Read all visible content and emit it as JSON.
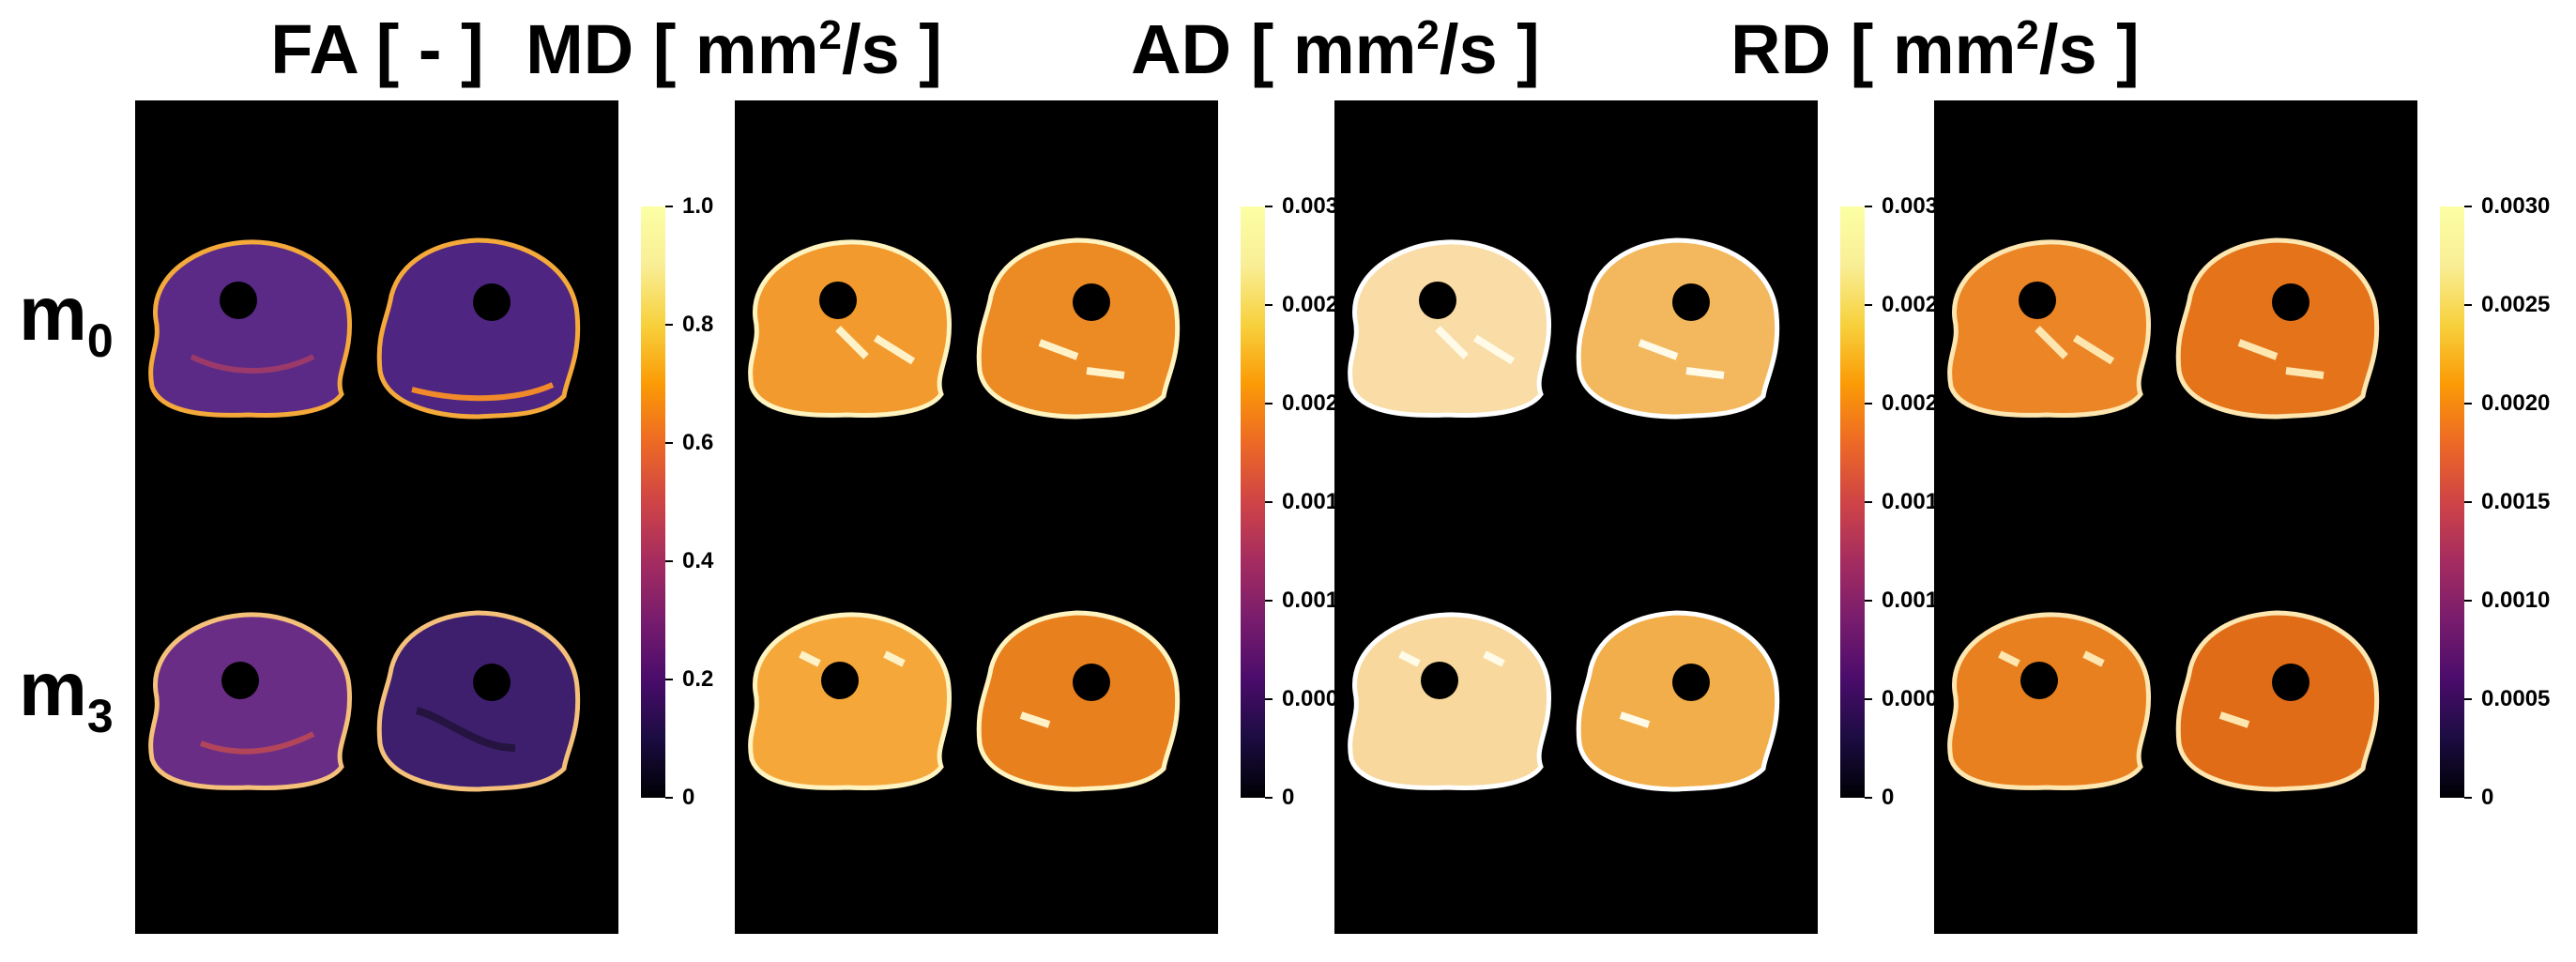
{
  "titles": {
    "fa": {
      "main": "FA [ - ]"
    },
    "md": {
      "pre": "MD [ mm",
      "sup": "2",
      "post": "/s ]"
    },
    "ad": {
      "pre": "AD [ mm",
      "sup": "2",
      "post": "/s ]"
    },
    "rd": {
      "pre": "RD [ mm",
      "sup": "2",
      "post": "/s ]"
    }
  },
  "rows": [
    {
      "base": "m",
      "sub": "0"
    },
    {
      "base": "m",
      "sub": "3"
    }
  ],
  "colorbars": {
    "fa": {
      "ticks": [
        "1.0",
        "0.8",
        "0.6",
        "0.4",
        "0.2",
        "0"
      ]
    },
    "diffusivity": {
      "ticks": [
        "0.0030",
        "0.0025",
        "0.0020",
        "0.0015",
        "0.0010",
        "0.0005",
        "0"
      ]
    }
  },
  "colors": {
    "panel_background": "#000000",
    "fa_tissue": "#5a2a86",
    "md_tissue": "#f0962a",
    "ad_tissue": "#f8d79a",
    "rd_tissue": "#e6761a"
  }
}
